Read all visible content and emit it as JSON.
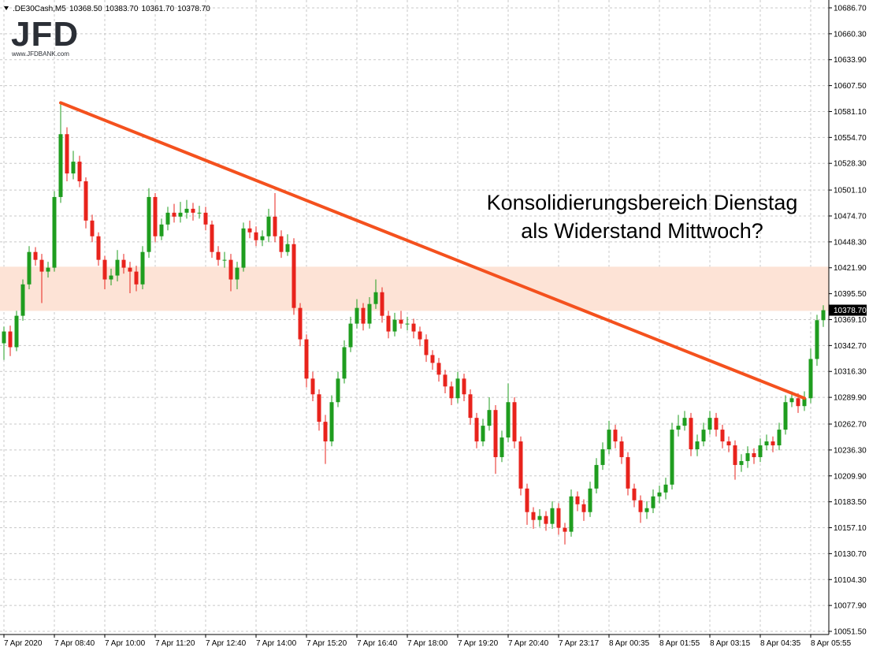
{
  "chart_data": {
    "type": "candlestick",
    "header": {
      "symbol": ".DE30Cash,M5",
      "ohlc": [
        "10368.50",
        "10383.70",
        "10361.70",
        "10378.70"
      ]
    },
    "logo": {
      "text": "JFD",
      "url": "www.JFDBANK.com"
    },
    "annotation": [
      "Konsolidierungsbereich Dienstag",
      "als Widerstand Mittwoch?"
    ],
    "last_price_label": "10378.70",
    "up_color": "#1f9d1f",
    "down_color": "#e8231c",
    "grid": true,
    "ylim": [
      10048.3,
      10694.7
    ],
    "yticks": [
      {
        "value": 10686.7,
        "label": "10686.70"
      },
      {
        "value": 10660.3,
        "label": "10660.30"
      },
      {
        "value": 10633.9,
        "label": "10633.90"
      },
      {
        "value": 10607.5,
        "label": "10607.50"
      },
      {
        "value": 10581.1,
        "label": "10581.10"
      },
      {
        "value": 10554.7,
        "label": "10554.70"
      },
      {
        "value": 10528.3,
        "label": "10528.30"
      },
      {
        "value": 10501.1,
        "label": "10501.10"
      },
      {
        "value": 10474.7,
        "label": "10474.70"
      },
      {
        "value": 10448.3,
        "label": "10448.30"
      },
      {
        "value": 10421.9,
        "label": "10421.90"
      },
      {
        "value": 10395.5,
        "label": "10395.50"
      },
      {
        "value": 10369.1,
        "label": "10369.10"
      },
      {
        "value": 10342.7,
        "label": "10342.70"
      },
      {
        "value": 10316.3,
        "label": "10316.30"
      },
      {
        "value": 10289.9,
        "label": "10289.90"
      },
      {
        "value": 10262.7,
        "label": "10262.70"
      },
      {
        "value": 10236.3,
        "label": "10236.30"
      },
      {
        "value": 10209.9,
        "label": "10209.90"
      },
      {
        "value": 10183.5,
        "label": "10183.50"
      },
      {
        "value": 10157.1,
        "label": "10157.10"
      },
      {
        "value": 10130.7,
        "label": "10130.70"
      },
      {
        "value": 10104.3,
        "label": "10104.30"
      },
      {
        "value": 10077.9,
        "label": "10077.90"
      },
      {
        "value": 10051.5,
        "label": "10051.50"
      }
    ],
    "zone": {
      "range": [
        10378,
        10423
      ],
      "color": "#fde3d6"
    },
    "trendline": {
      "x": [
        9,
        127
      ],
      "values": [
        10590,
        10289
      ],
      "color": "#f4511e"
    },
    "categories": [
      "7 Apr 2020",
      null,
      null,
      null,
      null,
      null,
      null,
      null,
      "7 Apr 08:40",
      null,
      null,
      null,
      null,
      null,
      null,
      null,
      "7 Apr 10:00",
      null,
      null,
      null,
      null,
      null,
      null,
      null,
      "7 Apr 11:20",
      null,
      null,
      null,
      null,
      null,
      null,
      null,
      "7 Apr 12:40",
      null,
      null,
      null,
      null,
      null,
      null,
      null,
      "7 Apr 14:00",
      null,
      null,
      null,
      null,
      null,
      null,
      null,
      "7 Apr 15:20",
      null,
      null,
      null,
      null,
      null,
      null,
      null,
      "7 Apr 16:40",
      null,
      null,
      null,
      null,
      null,
      null,
      null,
      "7 Apr 18:00",
      null,
      null,
      null,
      null,
      null,
      null,
      null,
      "7 Apr 19:20",
      null,
      null,
      null,
      null,
      null,
      null,
      null,
      "7 Apr 20:40",
      null,
      null,
      null,
      null,
      null,
      null,
      null,
      "7 Apr 23:17",
      null,
      null,
      null,
      null,
      null,
      null,
      null,
      "8 Apr 00:35",
      null,
      null,
      null,
      null,
      null,
      null,
      null,
      "8 Apr 01:55",
      null,
      null,
      null,
      null,
      null,
      null,
      null,
      "8 Apr 03:15",
      null,
      null,
      null,
      null,
      null,
      null,
      null,
      "8 Apr 04:35",
      null,
      null,
      null,
      null,
      null,
      null,
      null,
      "8 Apr 05:55",
      null,
      null
    ],
    "open": [
      10345,
      10357,
      10341,
      10373,
      10405,
      10438,
      10430,
      10418,
      10422,
      10494,
      10558,
      10518,
      10530,
      10510,
      10470,
      10454,
      10430,
      10410,
      10414,
      10430,
      10422,
      10418,
      10405,
      10438,
      10494,
      10454,
      10466,
      10478,
      10474,
      10478,
      10482,
      10478,
      10478,
      10466,
      10438,
      10430,
      10430,
      10410,
      10422,
      10462,
      10458,
      10450,
      10454,
      10474,
      10454,
      10438,
      10446,
      10381,
      10349,
      10309,
      10293,
      10265,
      10245,
      10285,
      10309,
      10341,
      10365,
      10381,
      10365,
      10385,
      10397,
      10373,
      10357,
      10369,
      10365,
      10365,
      10357,
      10349,
      10333,
      10325,
      10313,
      10301,
      10289,
      10309,
      10293,
      10269,
      10245,
      10261,
      10277,
      10229,
      10249,
      10285,
      10245,
      10197,
      10173,
      10165,
      10169,
      10161,
      10177,
      10157,
      10153,
      10189,
      10181,
      10173,
      10197,
      10221,
      10237,
      10257,
      10245,
      10229,
      10197,
      10185,
      10173,
      10177,
      10189,
      10193,
      10201,
      10257,
      10261,
      10269,
      10237,
      10245,
      10257,
      10269,
      10257,
      10245,
      10241,
      10221,
      10225,
      10233,
      10229,
      10241,
      10245,
      10241,
      10257,
      10285,
      10289,
      10281,
      10289,
      10329,
      10368.5
    ],
    "high": [
      10362,
      10363,
      10378,
      10410,
      10444,
      10443,
      10436,
      10428,
      10500,
      10590,
      10565,
      10541,
      10536,
      10514,
      10476,
      10458,
      10434,
      10421,
      10440,
      10436,
      10428,
      10424,
      10444,
      10503,
      10498,
      10472,
      10484,
      10487,
      10489,
      10491,
      10488,
      10485,
      10484,
      10470,
      10444,
      10438,
      10436,
      10428,
      10468,
      10470,
      10464,
      10460,
      10482,
      10498,
      10460,
      10456,
      10452,
      10386,
      10354,
      10316,
      10298,
      10272,
      10292,
      10316,
      10348,
      10372,
      10390,
      10386,
      10392,
      10410,
      10402,
      10378,
      10376,
      10378,
      10372,
      10370,
      10362,
      10354,
      10338,
      10330,
      10318,
      10306,
      10316,
      10314,
      10298,
      10274,
      10268,
      10290,
      10282,
      10256,
      10304,
      10290,
      10250,
      10202,
      10178,
      10176,
      10174,
      10184,
      10182,
      10162,
      10196,
      10194,
      10186,
      10204,
      10228,
      10244,
      10266,
      10262,
      10250,
      10234,
      10202,
      10190,
      10184,
      10196,
      10200,
      10208,
      10264,
      10272,
      10276,
      10274,
      10252,
      10264,
      10276,
      10274,
      10262,
      10250,
      10246,
      10232,
      10240,
      10238,
      10248,
      10252,
      10250,
      10264,
      10292,
      10296,
      10294,
      10296,
      10340,
      10374,
      10383.7
    ],
    "low": [
      10328,
      10332,
      10337,
      10368,
      10400,
      10424,
      10386,
      10412,
      10418,
      10488,
      10510,
      10512,
      10504,
      10462,
      10448,
      10424,
      10400,
      10404,
      10408,
      10416,
      10396,
      10398,
      10400,
      10432,
      10448,
      10450,
      10460,
      10468,
      10468,
      10472,
      10470,
      10472,
      10460,
      10432,
      10424,
      10422,
      10398,
      10400,
      10418,
      10452,
      10444,
      10444,
      10448,
      10448,
      10432,
      10434,
      10374,
      10342,
      10300,
      10286,
      10256,
      10222,
      10240,
      10280,
      10304,
      10336,
      10360,
      10358,
      10360,
      10380,
      10366,
      10350,
      10352,
      10360,
      10358,
      10350,
      10342,
      10326,
      10318,
      10306,
      10294,
      10282,
      10284,
      10286,
      10262,
      10238,
      10240,
      10256,
      10212,
      10224,
      10244,
      10238,
      10190,
      10160,
      10156,
      10158,
      10154,
      10156,
      10150,
      10140,
      10148,
      10174,
      10164,
      10168,
      10192,
      10216,
      10232,
      10238,
      10222,
      10190,
      10178,
      10162,
      10166,
      10172,
      10182,
      10186,
      10196,
      10250,
      10256,
      10230,
      10230,
      10240,
      10252,
      10250,
      10238,
      10234,
      10206,
      10214,
      10218,
      10222,
      10224,
      10236,
      10234,
      10236,
      10252,
      10280,
      10274,
      10276,
      10284,
      10322,
      10361.7
    ],
    "close": [
      10357,
      10341,
      10373,
      10405,
      10438,
      10430,
      10418,
      10422,
      10494,
      10558,
      10518,
      10530,
      10510,
      10470,
      10454,
      10430,
      10410,
      10414,
      10430,
      10422,
      10418,
      10405,
      10438,
      10494,
      10454,
      10466,
      10478,
      10474,
      10478,
      10482,
      10478,
      10478,
      10466,
      10438,
      10430,
      10430,
      10410,
      10422,
      10462,
      10458,
      10450,
      10454,
      10474,
      10454,
      10438,
      10446,
      10381,
      10349,
      10309,
      10293,
      10265,
      10245,
      10285,
      10309,
      10341,
      10365,
      10381,
      10365,
      10385,
      10397,
      10373,
      10357,
      10369,
      10365,
      10365,
      10357,
      10349,
      10333,
      10325,
      10313,
      10301,
      10289,
      10309,
      10293,
      10269,
      10245,
      10261,
      10277,
      10229,
      10249,
      10285,
      10245,
      10197,
      10173,
      10165,
      10169,
      10161,
      10177,
      10157,
      10153,
      10189,
      10181,
      10173,
      10197,
      10221,
      10237,
      10257,
      10245,
      10229,
      10197,
      10185,
      10173,
      10177,
      10189,
      10193,
      10201,
      10257,
      10261,
      10269,
      10237,
      10245,
      10257,
      10269,
      10257,
      10245,
      10241,
      10221,
      10225,
      10233,
      10229,
      10241,
      10245,
      10241,
      10257,
      10285,
      10289,
      10281,
      10289,
      10329,
      10368.5,
      10378.7
    ]
  }
}
